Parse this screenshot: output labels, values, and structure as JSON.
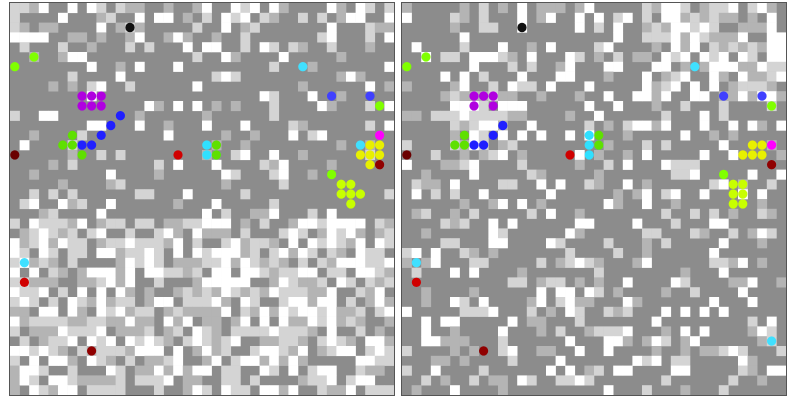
{
  "views": [
    {
      "id": "left",
      "seed": 11,
      "light_region": "bottom",
      "agents": [
        {
          "type": "violet-cluster",
          "color": "#b000e0",
          "cells": [
            [
              7,
              9
            ],
            [
              8,
              9
            ],
            [
              9,
              9
            ],
            [
              7,
              10
            ],
            [
              9,
              10
            ],
            [
              8,
              10
            ]
          ]
        },
        {
          "type": "blue-cluster",
          "color": "#2020ff",
          "cells": [
            [
              10,
              12
            ],
            [
              11,
              11
            ],
            [
              9,
              13
            ],
            [
              8,
              14
            ],
            [
              7,
              14
            ]
          ]
        },
        {
          "type": "green-cluster",
          "color": "#5fe000",
          "cells": [
            [
              6,
              13
            ],
            [
              6,
              14
            ],
            [
              7,
              15
            ],
            [
              5,
              14
            ]
          ]
        },
        {
          "type": "cyan-cluster",
          "color": "#30e0ff",
          "cells": [
            [
              20,
              14
            ],
            [
              21,
              15
            ],
            [
              20,
              15
            ]
          ]
        },
        {
          "type": "green-cluster",
          "color": "#5fe000",
          "cells": [
            [
              21,
              14
            ],
            [
              21,
              15
            ]
          ]
        },
        {
          "type": "yellow-cluster",
          "color": "#e8f000",
          "cells": [
            [
              37,
              14
            ],
            [
              38,
              14
            ],
            [
              37,
              15
            ],
            [
              38,
              15
            ],
            [
              36,
              15
            ],
            [
              37,
              16
            ]
          ]
        },
        {
          "type": "lime-cluster",
          "color": "#c8ff00",
          "cells": [
            [
              34,
              18
            ],
            [
              35,
              18
            ],
            [
              35,
              19
            ],
            [
              36,
              19
            ],
            [
              34,
              19
            ],
            [
              35,
              20
            ]
          ]
        },
        {
          "type": "single",
          "color": "#6a0000",
          "cells": [
            [
              0,
              15
            ]
          ]
        },
        {
          "type": "single",
          "color": "#111111",
          "cells": [
            [
              12,
              2
            ]
          ]
        },
        {
          "type": "single",
          "color": "#80ff00",
          "cells": [
            [
              2,
              5
            ],
            [
              0,
              6
            ],
            [
              38,
              10
            ],
            [
              33,
              17
            ]
          ]
        },
        {
          "type": "single",
          "color": "#40e0ff",
          "cells": [
            [
              30,
              6
            ],
            [
              1,
              26
            ],
            [
              36,
              14
            ]
          ]
        },
        {
          "type": "single",
          "color": "#4040ff",
          "cells": [
            [
              33,
              9
            ],
            [
              37,
              9
            ]
          ]
        },
        {
          "type": "single",
          "color": "#d00000",
          "cells": [
            [
              17,
              15
            ],
            [
              1,
              28
            ]
          ]
        },
        {
          "type": "single",
          "color": "#900000",
          "cells": [
            [
              8,
              35
            ],
            [
              38,
              16
            ]
          ]
        },
        {
          "type": "single",
          "color": "#ff00ff",
          "cells": [
            [
              38,
              13
            ]
          ]
        }
      ]
    },
    {
      "id": "right",
      "seed": 23,
      "light_region": "top-right",
      "agents": [
        {
          "type": "violet-cluster",
          "color": "#b000e0",
          "cells": [
            [
              7,
              9
            ],
            [
              8,
              9
            ],
            [
              9,
              9
            ],
            [
              7,
              10
            ],
            [
              9,
              10
            ]
          ]
        },
        {
          "type": "blue-cluster",
          "color": "#2020ff",
          "cells": [
            [
              10,
              12
            ],
            [
              9,
              13
            ],
            [
              8,
              14
            ],
            [
              7,
              14
            ]
          ]
        },
        {
          "type": "green-cluster",
          "color": "#5fe000",
          "cells": [
            [
              6,
              13
            ],
            [
              6,
              14
            ],
            [
              5,
              14
            ]
          ]
        },
        {
          "type": "cyan-cluster",
          "color": "#30e0ff",
          "cells": [
            [
              19,
              13
            ],
            [
              19,
              14
            ],
            [
              20,
              14
            ],
            [
              19,
              15
            ]
          ]
        },
        {
          "type": "green-cluster",
          "color": "#5fe000",
          "cells": [
            [
              20,
              13
            ],
            [
              20,
              14
            ]
          ]
        },
        {
          "type": "yellow-cluster",
          "color": "#e8f000",
          "cells": [
            [
              36,
              14
            ],
            [
              37,
              14
            ],
            [
              36,
              15
            ],
            [
              37,
              15
            ],
            [
              35,
              15
            ]
          ]
        },
        {
          "type": "lime-cluster",
          "color": "#c8ff00",
          "cells": [
            [
              34,
              18
            ],
            [
              35,
              18
            ],
            [
              35,
              19
            ],
            [
              34,
              19
            ],
            [
              35,
              20
            ],
            [
              34,
              20
            ]
          ]
        },
        {
          "type": "single",
          "color": "#6a0000",
          "cells": [
            [
              0,
              15
            ]
          ]
        },
        {
          "type": "single",
          "color": "#111111",
          "cells": [
            [
              12,
              2
            ]
          ]
        },
        {
          "type": "single",
          "color": "#80ff00",
          "cells": [
            [
              2,
              5
            ],
            [
              0,
              6
            ],
            [
              38,
              10
            ],
            [
              33,
              17
            ]
          ]
        },
        {
          "type": "single",
          "color": "#40e0ff",
          "cells": [
            [
              30,
              6
            ],
            [
              1,
              26
            ],
            [
              38,
              34
            ]
          ]
        },
        {
          "type": "single",
          "color": "#4040ff",
          "cells": [
            [
              33,
              9
            ],
            [
              37,
              9
            ]
          ]
        },
        {
          "type": "single",
          "color": "#d00000",
          "cells": [
            [
              17,
              15
            ],
            [
              1,
              28
            ]
          ]
        },
        {
          "type": "single",
          "color": "#900000",
          "cells": [
            [
              8,
              35
            ],
            [
              38,
              16
            ]
          ]
        },
        {
          "type": "single",
          "color": "#ff00ff",
          "cells": [
            [
              38,
              14
            ]
          ]
        }
      ]
    }
  ],
  "grid": {
    "cols": 40,
    "rows": 40
  },
  "palette": {
    "dark": "#8c8c8c",
    "mid": "#b4b4b4",
    "light": "#d4d4d4",
    "white": "#ffffff"
  }
}
